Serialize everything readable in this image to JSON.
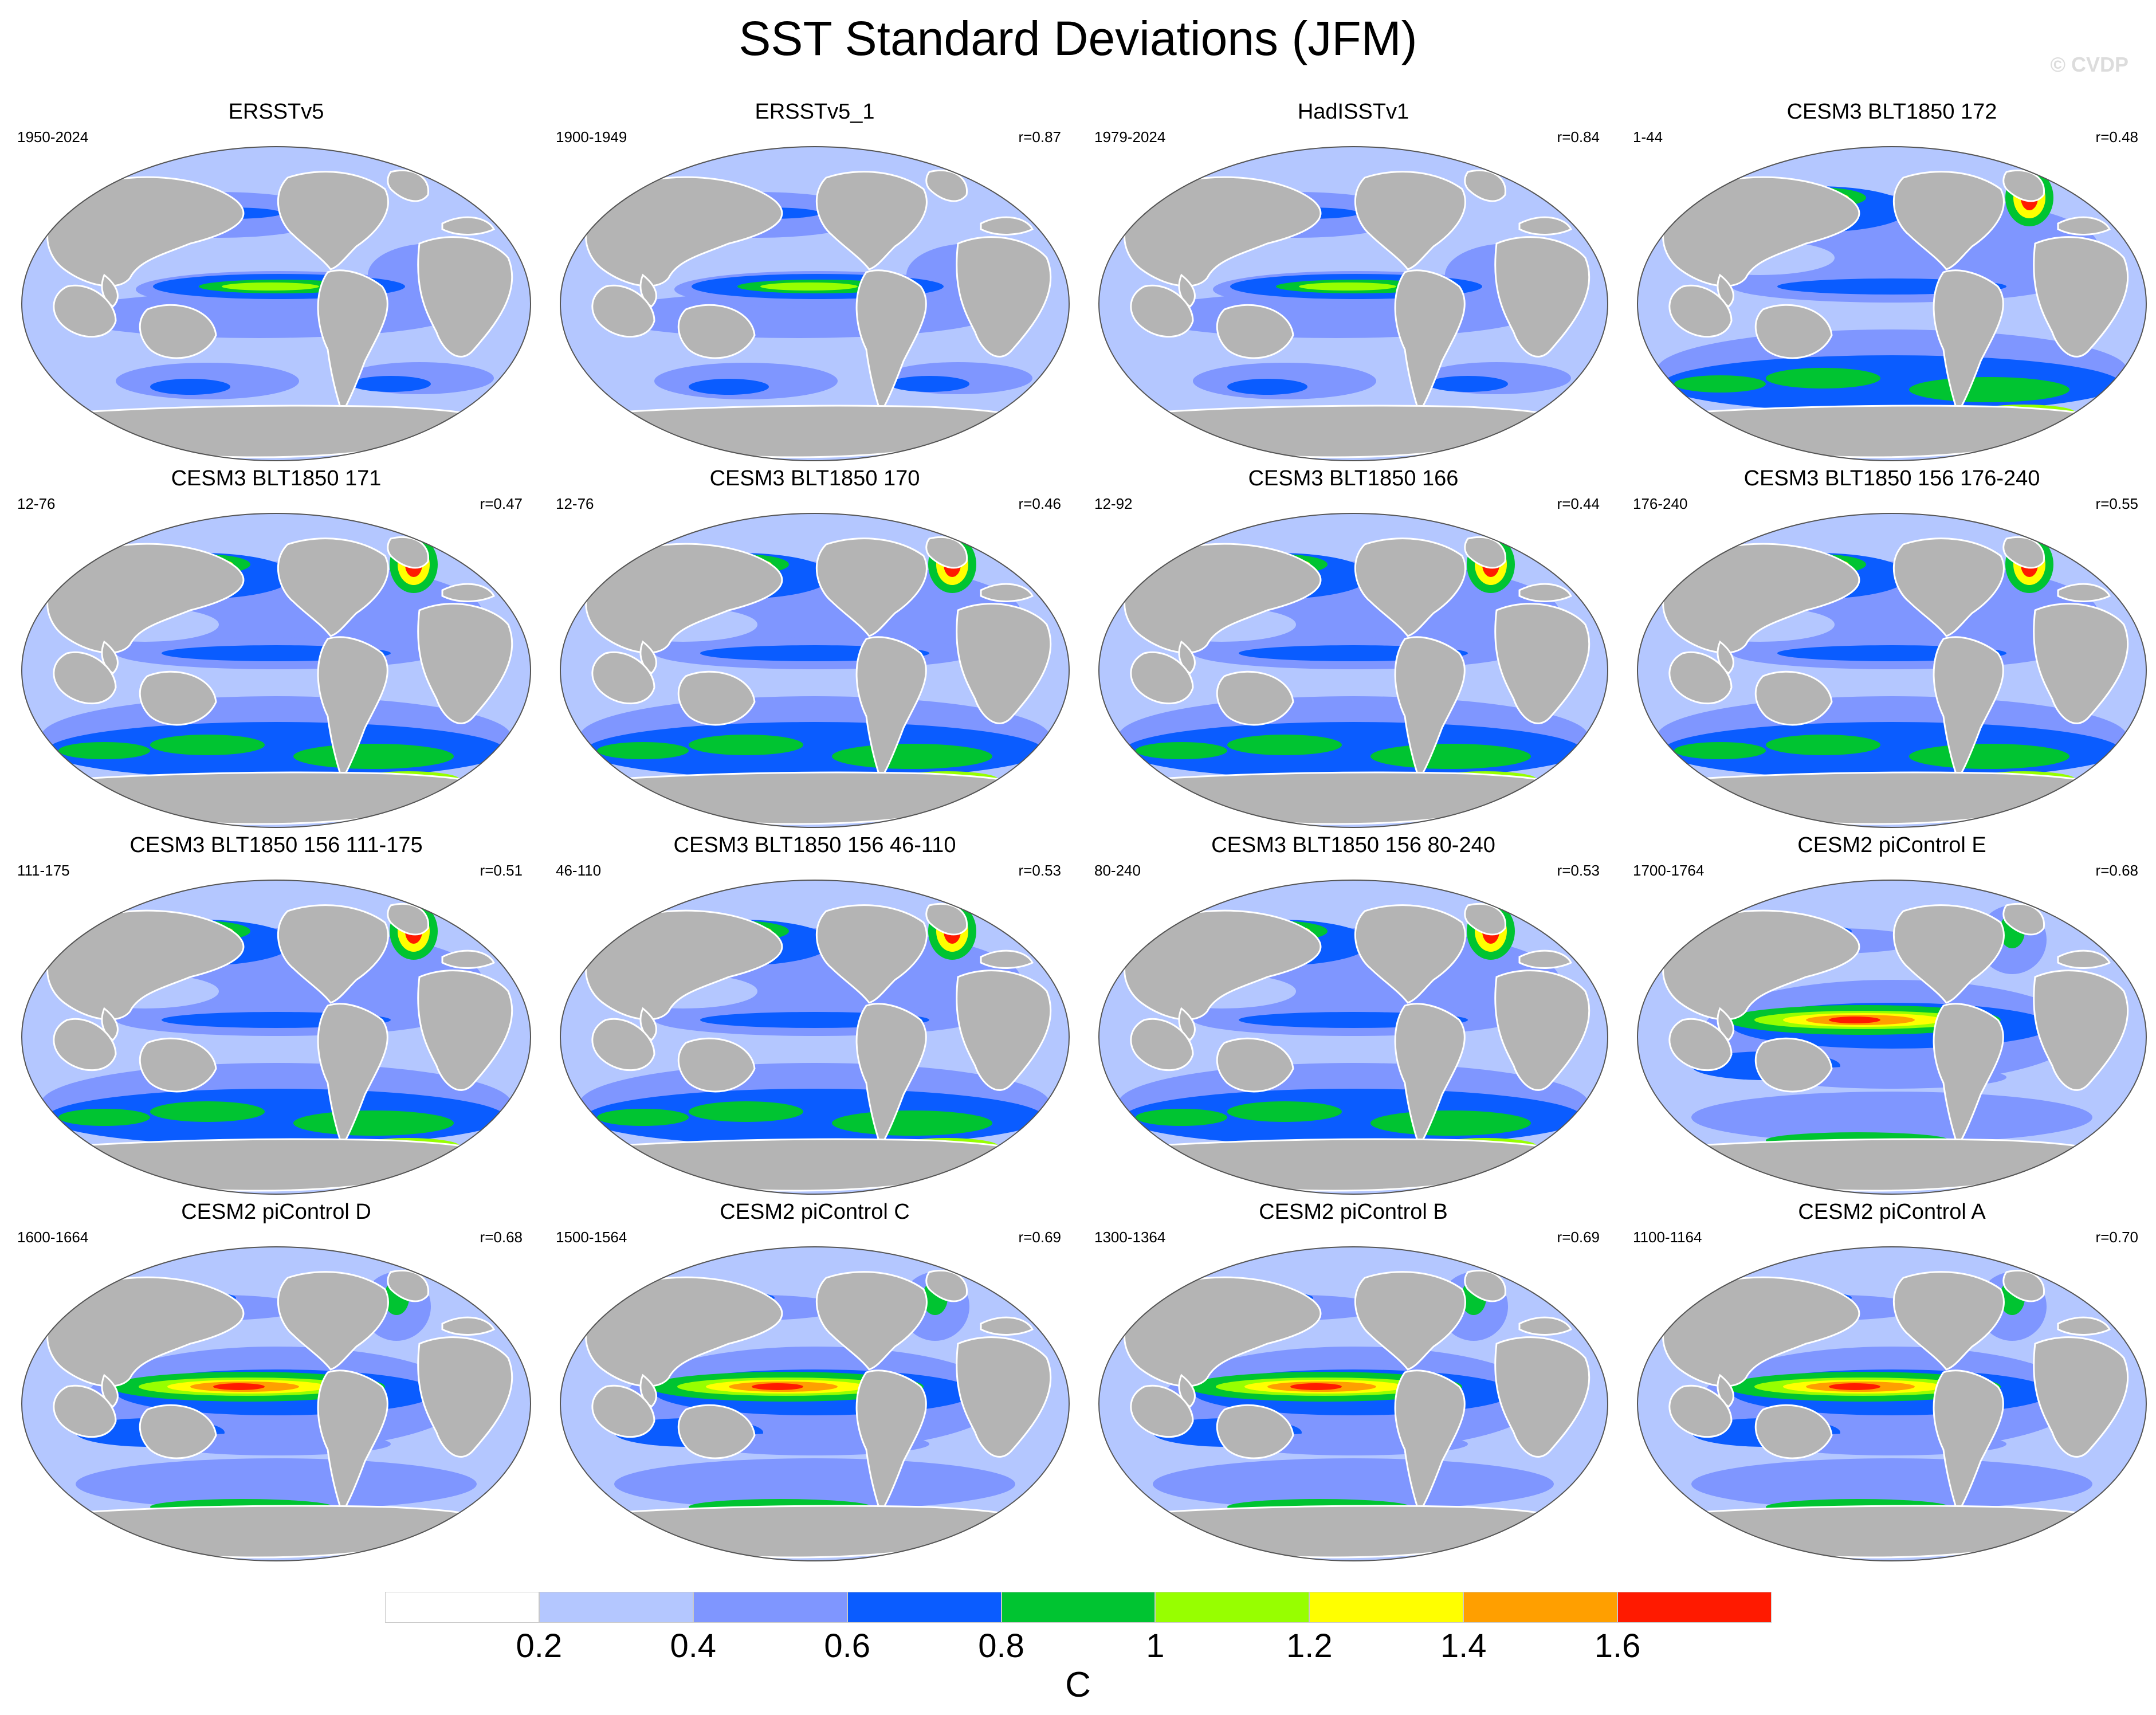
{
  "title": "SST Standard Deviations (JFM)",
  "watermark": "© CVDP",
  "colors": {
    "land": "#b4b4b4",
    "levels": [
      "#ffffff",
      "#b4c7ff",
      "#7f96ff",
      "#0a5cff",
      "#00c431",
      "#97ff00",
      "#ffff00",
      "#ff9f00",
      "#ff1a00"
    ]
  },
  "panels": [
    {
      "title": "ERSSTv5",
      "years": "1950-2024",
      "corr": "",
      "pattern": "obs"
    },
    {
      "title": "ERSSTv5_1",
      "years": "1900-1949",
      "corr": "r=0.87",
      "pattern": "obs"
    },
    {
      "title": "HadISSTv1",
      "years": "1979-2024",
      "corr": "r=0.84",
      "pattern": "obs"
    },
    {
      "title": "CESM3 BLT1850 172",
      "years": "1-44",
      "corr": "r=0.48",
      "pattern": "cesm3"
    },
    {
      "title": "CESM3 BLT1850 171",
      "years": "12-76",
      "corr": "r=0.47",
      "pattern": "cesm3"
    },
    {
      "title": "CESM3 BLT1850 170",
      "years": "12-76",
      "corr": "r=0.46",
      "pattern": "cesm3"
    },
    {
      "title": "CESM3 BLT1850 166",
      "years": "12-92",
      "corr": "r=0.44",
      "pattern": "cesm3"
    },
    {
      "title": "CESM3 BLT1850 156 176-240",
      "years": "176-240",
      "corr": "r=0.55",
      "pattern": "cesm3"
    },
    {
      "title": "CESM3 BLT1850 156 111-175",
      "years": "111-175",
      "corr": "r=0.51",
      "pattern": "cesm3"
    },
    {
      "title": "CESM3 BLT1850 156 46-110",
      "years": "46-110",
      "corr": "r=0.53",
      "pattern": "cesm3"
    },
    {
      "title": "CESM3 BLT1850 156 80-240",
      "years": "80-240",
      "corr": "r=0.53",
      "pattern": "cesm3"
    },
    {
      "title": "CESM2 piControl E",
      "years": "1700-1764",
      "corr": "r=0.68",
      "pattern": "cesm2"
    },
    {
      "title": "CESM2 piControl D",
      "years": "1600-1664",
      "corr": "r=0.68",
      "pattern": "cesm2"
    },
    {
      "title": "CESM2 piControl C",
      "years": "1500-1564",
      "corr": "r=0.69",
      "pattern": "cesm2"
    },
    {
      "title": "CESM2 piControl B",
      "years": "1300-1364",
      "corr": "r=0.69",
      "pattern": "cesm2"
    },
    {
      "title": "CESM2 piControl A",
      "years": "1100-1164",
      "corr": "r=0.70",
      "pattern": "cesm2"
    }
  ],
  "colorbar": {
    "ticks": [
      "0.2",
      "0.4",
      "0.6",
      "0.8",
      "1",
      "1.2",
      "1.4",
      "1.6"
    ],
    "units": "C"
  }
}
